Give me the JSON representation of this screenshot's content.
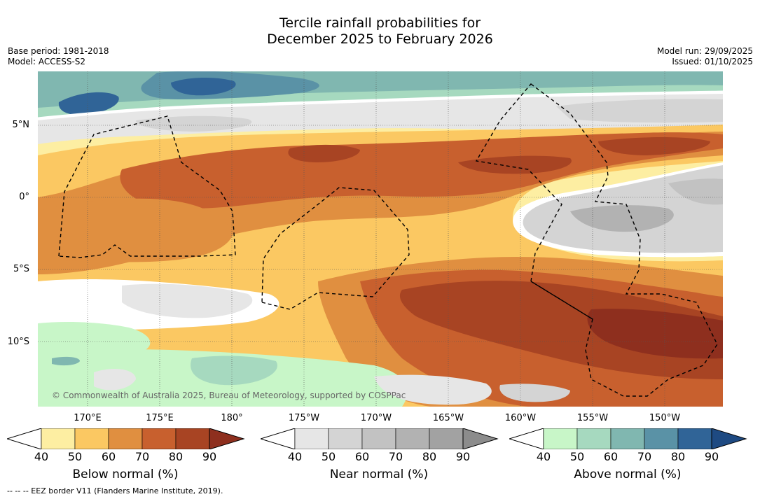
{
  "title": {
    "line1": "Tercile rainfall probabilities for",
    "line2": "December 2025 to February 2026"
  },
  "meta_left": {
    "base_period": "Base period: 1981-2018",
    "model": "Model: ACCESS-S2"
  },
  "meta_right": {
    "model_run": "Model run: 29/09/2025",
    "issued": "Issued: 01/10/2025"
  },
  "map": {
    "lat_labels": [
      "5°N",
      "0°",
      "5°S",
      "10°S"
    ],
    "lon_labels": [
      "170°E",
      "175°E",
      "180°",
      "175°W",
      "170°W",
      "165°W",
      "160°W",
      "155°W",
      "150°W"
    ],
    "copyright": "© Commonwealth of Australia 2025, Bureau of Meteorology, supported by COSPPac"
  },
  "colorbars": [
    {
      "title": "Below normal (%)",
      "ticks": [
        "40",
        "50",
        "60",
        "70",
        "80",
        "90"
      ],
      "colors": [
        "#fdeea2",
        "#fbc862",
        "#e08f40",
        "#c8602e",
        "#a84423",
        "#8e2f1e"
      ]
    },
    {
      "title": "Near normal (%)",
      "ticks": [
        "40",
        "50",
        "60",
        "70",
        "80",
        "90"
      ],
      "colors": [
        "#e6e6e6",
        "#d4d4d4",
        "#c2c2c2",
        "#b2b2b2",
        "#a2a2a2",
        "#8c8c8c"
      ]
    },
    {
      "title": "Above normal (%)",
      "ticks": [
        "40",
        "50",
        "60",
        "70",
        "80",
        "90"
      ],
      "colors": [
        "#c8f6c8",
        "#a6d9bf",
        "#80b7b0",
        "#5a92a6",
        "#306497",
        "#1e4a82"
      ]
    }
  ],
  "footnote": "-- -- -- EEZ border V11 (Flanders Marine Institute, 2019)."
}
